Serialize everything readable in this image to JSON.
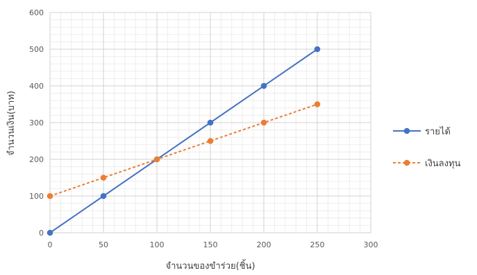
{
  "chart_data": {
    "type": "line",
    "title": "",
    "xlabel": "จำนวนของขำร่วย(ชิ้น)",
    "ylabel": "จำนวนเงิน(บาท)",
    "xlim": [
      0,
      300
    ],
    "ylim": [
      0,
      600
    ],
    "x_ticks": [
      "0",
      "50",
      "100",
      "150",
      "200",
      "250",
      "300"
    ],
    "y_ticks": [
      "0",
      "100",
      "200",
      "300",
      "400",
      "500",
      "600"
    ],
    "grid": true,
    "legend_position": "right",
    "x": [
      0,
      50,
      100,
      150,
      200,
      250
    ],
    "series": [
      {
        "name": "รายได้",
        "values": [
          0,
          100,
          200,
          300,
          400,
          500
        ],
        "color": "#4472C4",
        "style": "solid"
      },
      {
        "name": "เงินลงทุน",
        "values": [
          100,
          150,
          200,
          250,
          300,
          350
        ],
        "color": "#ED7D31",
        "style": "dashed"
      }
    ]
  }
}
